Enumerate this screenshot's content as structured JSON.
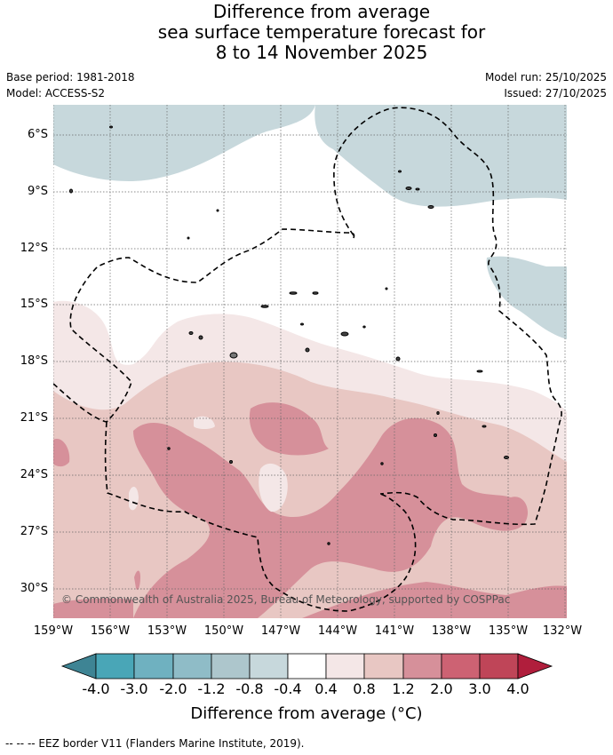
{
  "title": {
    "line1": "Difference from average",
    "line2": "sea surface temperature forecast for",
    "line3": "8 to 14 November 2025"
  },
  "meta": {
    "base_period": "Base period: 1981-2018",
    "model": "Model: ACCESS-S2",
    "model_run": "Model run: 25/10/2025",
    "issued": "Issued: 27/10/2025"
  },
  "axes": {
    "lat_labels": [
      "6°S",
      "9°S",
      "12°S",
      "15°S",
      "18°S",
      "21°S",
      "24°S",
      "27°S",
      "30°S"
    ],
    "lon_labels": [
      "159°W",
      "156°W",
      "153°W",
      "150°W",
      "147°W",
      "144°W",
      "141°W",
      "138°W",
      "135°W",
      "132°W"
    ]
  },
  "copyright": "© Commonwealth of Australia 2025, Bureau of Meteorology, supported by COSPPac",
  "colorbar": {
    "labels": [
      "-4.0",
      "-3.0",
      "-2.0",
      "-1.2",
      "-0.8",
      "-0.4",
      "0.4",
      "0.8",
      "1.2",
      "2.0",
      "3.0",
      "4.0"
    ],
    "colors": [
      "#3e8494",
      "#49a6b7",
      "#6fb1c0",
      "#8fbcc7",
      "#adc6cc",
      "#c7d8dc",
      "#ffffff",
      "#f4e7e7",
      "#e8c7c3",
      "#d6909a",
      "#cd6273",
      "#bf4558",
      "#b01e3c"
    ],
    "title": "Difference from average (°C)"
  },
  "legend": {
    "eez_label": "--  --  -- EEZ border V11 (Flanders Marine Institute, 2019)."
  },
  "colors": {
    "cool_light": "#c7d8dc",
    "warm_0_4": "#f4e7e7",
    "warm_0_8": "#e8c7c3",
    "warm_1_2": "#d6909a",
    "warm_2_0": "#cd6273"
  }
}
